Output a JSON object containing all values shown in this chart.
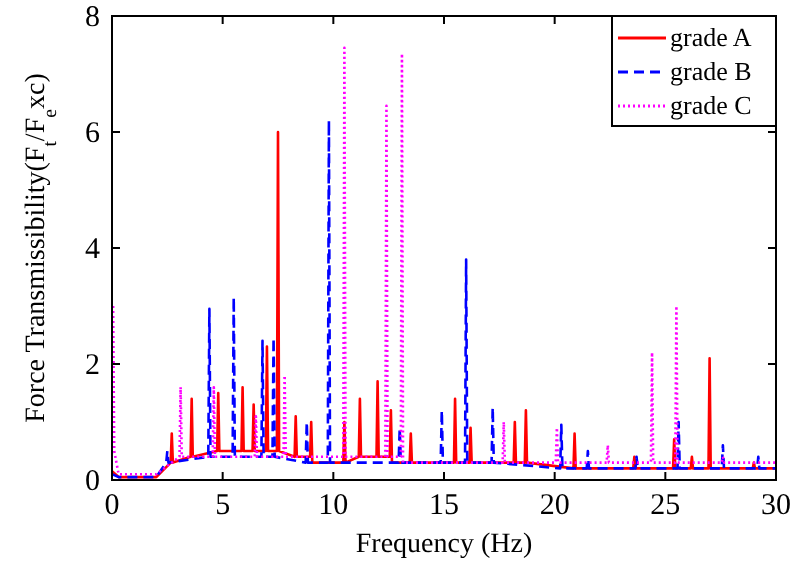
{
  "chart_data": {
    "type": "line",
    "xlabel": "Frequency (Hz)",
    "ylabel": "Force Transmissibility(F$_{t}$/F$_{e}$xc)",
    "xlim": [
      0,
      30
    ],
    "ylim": [
      0,
      8
    ],
    "xticks": [
      0,
      5,
      10,
      15,
      20,
      25,
      30
    ],
    "yticks": [
      0,
      2,
      4,
      6,
      8
    ],
    "legend": "top right",
    "grid": false,
    "series": [
      {
        "name": "grade A",
        "color": "#ff0000",
        "line_style": "solid",
        "x": [
          0,
          0.3,
          2,
          2.65,
          2.7,
          2.75,
          3.55,
          3.6,
          3.65,
          4.75,
          4.8,
          4.85,
          5.85,
          5.9,
          5.95,
          6.35,
          6.4,
          6.45,
          6.95,
          7.0,
          7.05,
          7.45,
          7.5,
          7.55,
          8.25,
          8.3,
          8.35,
          8.95,
          9.0,
          9.05,
          10.45,
          10.5,
          10.55,
          11.15,
          11.2,
          11.25,
          11.95,
          12.0,
          12.05,
          12.55,
          12.6,
          12.65,
          13.45,
          13.5,
          13.55,
          15.45,
          15.5,
          15.55,
          16.15,
          16.2,
          16.25,
          18.15,
          18.2,
          18.25,
          18.65,
          18.7,
          18.75,
          20.85,
          20.9,
          20.95,
          23.55,
          23.6,
          23.65,
          25.35,
          25.4,
          25.45,
          26.15,
          26.2,
          26.25,
          26.95,
          27.0,
          27.05,
          28.95,
          29.0,
          29.05,
          30
        ],
        "values": [
          0.15,
          0.05,
          0.05,
          0.3,
          0.8,
          0.3,
          0.4,
          1.4,
          0.4,
          0.5,
          1.5,
          0.5,
          0.5,
          1.6,
          0.5,
          0.5,
          1.3,
          0.5,
          0.5,
          2.3,
          0.5,
          0.5,
          6.0,
          0.5,
          0.4,
          1.1,
          0.4,
          0.4,
          1.0,
          0.3,
          0.3,
          1.0,
          0.3,
          0.4,
          1.4,
          0.4,
          0.4,
          1.7,
          0.4,
          0.4,
          1.2,
          0.3,
          0.3,
          0.8,
          0.3,
          0.3,
          1.4,
          0.3,
          0.3,
          0.9,
          0.3,
          0.3,
          1.0,
          0.3,
          0.3,
          1.2,
          0.3,
          0.2,
          0.8,
          0.2,
          0.2,
          0.4,
          0.2,
          0.2,
          0.7,
          0.2,
          0.2,
          0.4,
          0.2,
          0.2,
          2.1,
          0.2,
          0.2,
          0.3,
          0.2,
          0.2
        ]
      },
      {
        "name": "grade B",
        "color": "#0000ff",
        "line_style": "dashed",
        "x": [
          0,
          0.3,
          2,
          2.45,
          2.5,
          2.55,
          4.35,
          4.4,
          4.45,
          5.45,
          5.5,
          5.55,
          6.75,
          6.8,
          6.85,
          7.25,
          7.3,
          7.35,
          8.75,
          8.8,
          8.85,
          9.75,
          9.8,
          9.85,
          12.95,
          13.0,
          13.05,
          14.85,
          14.9,
          14.95,
          15.95,
          16.0,
          16.05,
          17.15,
          17.2,
          17.25,
          20.25,
          20.3,
          20.35,
          21.45,
          21.5,
          21.55,
          23.65,
          23.7,
          23.75,
          25.55,
          25.6,
          25.65,
          27.55,
          27.6,
          27.65,
          29.15,
          29.2,
          29.25,
          30
        ],
        "values": [
          0.1,
          0.05,
          0.05,
          0.3,
          0.5,
          0.3,
          0.4,
          2.95,
          0.4,
          0.4,
          3.15,
          0.4,
          0.4,
          2.4,
          0.4,
          0.4,
          2.45,
          0.4,
          0.3,
          1.0,
          0.3,
          0.3,
          6.2,
          0.3,
          0.3,
          0.9,
          0.3,
          0.3,
          1.2,
          0.3,
          0.3,
          3.8,
          0.3,
          0.3,
          1.25,
          0.3,
          0.2,
          0.95,
          0.2,
          0.2,
          0.5,
          0.2,
          0.2,
          0.4,
          0.2,
          0.2,
          1.0,
          0.2,
          0.2,
          0.6,
          0.2,
          0.2,
          0.4,
          0.2,
          0.2
        ]
      },
      {
        "name": "grade C",
        "color": "#ff00ff",
        "line_style": "dotted",
        "x": [
          0.05,
          0.1,
          0.3,
          2,
          3.05,
          3.1,
          3.15,
          4.55,
          4.6,
          4.65,
          6.45,
          6.5,
          6.55,
          7.75,
          7.8,
          7.85,
          10.45,
          10.5,
          10.55,
          12.35,
          12.4,
          12.45,
          13.05,
          13.1,
          13.15,
          17.65,
          17.7,
          17.75,
          20.05,
          20.1,
          20.15,
          22.35,
          22.4,
          22.45,
          24.35,
          24.4,
          24.45,
          25.45,
          25.5,
          25.55,
          27.55,
          27.6,
          27.65,
          30
        ],
        "values": [
          3.0,
          0.5,
          0.1,
          0.1,
          0.4,
          1.6,
          0.4,
          0.4,
          1.6,
          0.4,
          0.4,
          1.1,
          0.4,
          0.4,
          1.8,
          0.4,
          0.4,
          7.45,
          0.4,
          0.4,
          6.45,
          0.4,
          0.4,
          7.35,
          0.3,
          0.3,
          1.0,
          0.3,
          0.3,
          0.9,
          0.3,
          0.3,
          0.6,
          0.3,
          0.3,
          2.2,
          0.3,
          0.3,
          3.0,
          0.3,
          0.3,
          0.4,
          0.3,
          0.3
        ]
      }
    ]
  }
}
